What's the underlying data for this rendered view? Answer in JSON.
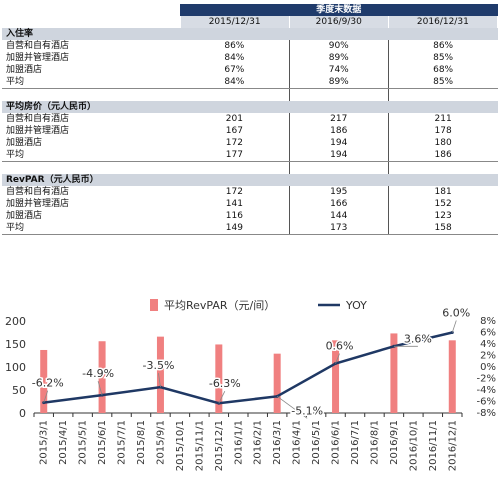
{
  "table": {
    "header_group": "季度末数据",
    "columns": [
      "2015/12/31",
      "2016/9/30",
      "2016/12/31"
    ],
    "sections": [
      {
        "title": "入住率",
        "rows": [
          {
            "label": "自营和自有酒店",
            "values": [
              "86%",
              "90%",
              "86%"
            ]
          },
          {
            "label": "加盟并管理酒店",
            "values": [
              "84%",
              "89%",
              "85%"
            ]
          },
          {
            "label": "加盟酒店",
            "values": [
              "67%",
              "74%",
              "68%"
            ]
          },
          {
            "label": "平均",
            "values": [
              "84%",
              "89%",
              "85%"
            ]
          }
        ]
      },
      {
        "title": "平均房价（元人民币）",
        "rows": [
          {
            "label": "自营和自有酒店",
            "values": [
              "201",
              "217",
              "211"
            ]
          },
          {
            "label": "加盟并管理酒店",
            "values": [
              "167",
              "186",
              "178"
            ]
          },
          {
            "label": "加盟酒店",
            "values": [
              "172",
              "194",
              "180"
            ]
          },
          {
            "label": "平均",
            "values": [
              "177",
              "194",
              "186"
            ]
          }
        ]
      },
      {
        "title": "RevPAR（元人民币）",
        "rows": [
          {
            "label": "自营和自有酒店",
            "values": [
              "172",
              "195",
              "181"
            ]
          },
          {
            "label": "加盟并管理酒店",
            "values": [
              "141",
              "166",
              "152"
            ]
          },
          {
            "label": "加盟酒店",
            "values": [
              "116",
              "144",
              "123"
            ]
          },
          {
            "label": "平均",
            "values": [
              "149",
              "173",
              "158"
            ]
          }
        ]
      }
    ]
  },
  "chart_data": {
    "type": "bar",
    "categories": [
      "2015/3/1",
      "2015/4/1",
      "2015/5/1",
      "2015/6/1",
      "2015/7/1",
      "2015/8/1",
      "2015/9/1",
      "2015/10/1",
      "2015/11/1",
      "2015/12/1",
      "2016/1/1",
      "2016/2/1",
      "2016/3/1",
      "2016/4/1",
      "2016/5/1",
      "2016/6/1",
      "2016/7/1",
      "2016/8/1",
      "2016/9/1",
      "2016/10/1",
      "2016/11/1",
      "2016/12/1"
    ],
    "series": [
      {
        "name": "平均RevPAR（元/间）",
        "type": "bar",
        "axis": "left",
        "color": "#f08080",
        "points": [
          {
            "x": "2015/3/1",
            "y": 137
          },
          {
            "x": "2015/6/1",
            "y": 156
          },
          {
            "x": "2015/9/1",
            "y": 166
          },
          {
            "x": "2015/12/1",
            "y": 149
          },
          {
            "x": "2016/3/1",
            "y": 129
          },
          {
            "x": "2016/6/1",
            "y": 158
          },
          {
            "x": "2016/9/1",
            "y": 173
          },
          {
            "x": "2016/12/1",
            "y": 158
          }
        ]
      },
      {
        "name": "YOY",
        "type": "line",
        "axis": "right",
        "color": "#1f3864",
        "points": [
          {
            "x": "2015/3/1",
            "y": -6.2
          },
          {
            "x": "2015/6/1",
            "y": -4.9
          },
          {
            "x": "2015/9/1",
            "y": -3.5
          },
          {
            "x": "2015/12/1",
            "y": -6.3
          },
          {
            "x": "2016/3/1",
            "y": -5.1
          },
          {
            "x": "2016/6/1",
            "y": 0.6
          },
          {
            "x": "2016/9/1",
            "y": 3.6
          },
          {
            "x": "2016/12/1",
            "y": 6.0
          }
        ]
      }
    ],
    "data_labels": [
      "-6.2%",
      "-4.9%",
      "-3.5%",
      "-6.3%",
      "-5.1%",
      "0.6%",
      "3.6%",
      "6.0%"
    ],
    "y_left": {
      "min": 0,
      "max": 200,
      "ticks": [
        "0",
        "50",
        "100",
        "150",
        "200"
      ]
    },
    "y_right": {
      "min": -8,
      "max": 8,
      "ticks": [
        "-8%",
        "-6%",
        "-4%",
        "-2%",
        "0%",
        "2%",
        "4%",
        "6%",
        "8%"
      ]
    },
    "legend": {
      "position": "top",
      "items": [
        "平均RevPAR（元/间）",
        "YOY"
      ]
    },
    "grid": false
  }
}
